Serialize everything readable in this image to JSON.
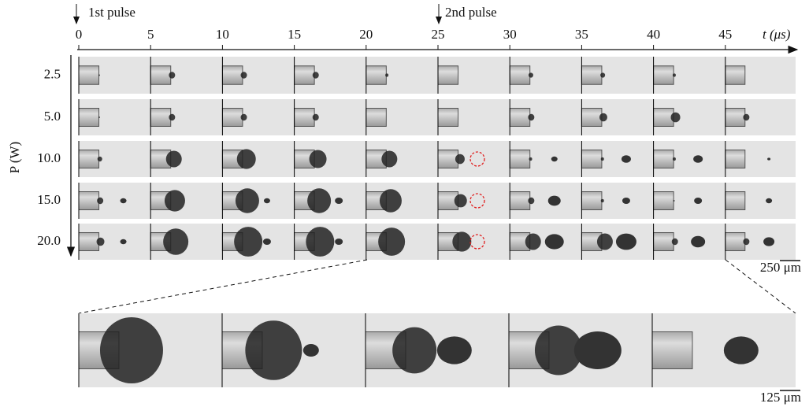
{
  "figure": {
    "time_axis": {
      "label": "t (μs)",
      "ticks": [
        0,
        5,
        10,
        15,
        20,
        25,
        30,
        35,
        40,
        45
      ]
    },
    "pulse_labels": [
      "1st pulse",
      "2nd pulse"
    ],
    "power_axis": {
      "label": "P (W)",
      "rows": [
        "2.5",
        "5.0",
        "10.0",
        "15.0",
        "20.0"
      ]
    },
    "scale_bars": [
      "250 μm",
      "125 μm"
    ]
  }
}
